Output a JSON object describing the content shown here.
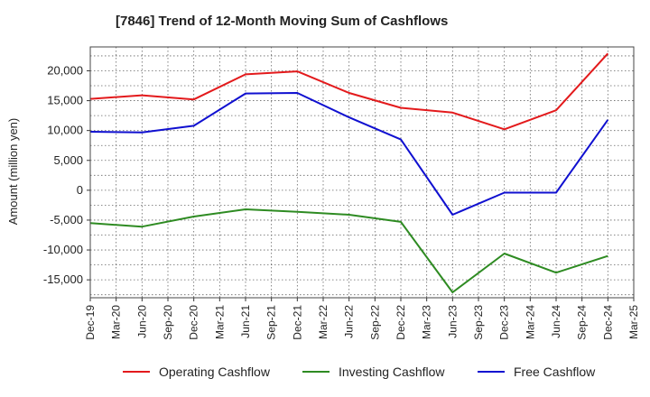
{
  "chart_data": {
    "type": "line",
    "title": "[7846]  Trend of 12-Month Moving Sum of Cashflows",
    "xlabel": "",
    "ylabel": "Amount (million yen)",
    "ylim": [
      -18000,
      24000
    ],
    "y_ticks": [
      20000,
      15000,
      10000,
      5000,
      0,
      -5000,
      -10000,
      -15000
    ],
    "y_tick_labels": [
      "20,000",
      "15,000",
      "10,000",
      "5,000",
      "0",
      "-5,000",
      "-10,000",
      "-15,000"
    ],
    "categories": [
      "Dec-19",
      "Mar-20",
      "Jun-20",
      "Sep-20",
      "Dec-20",
      "Mar-21",
      "Jun-21",
      "Sep-21",
      "Dec-21",
      "Mar-22",
      "Jun-22",
      "Sep-22",
      "Dec-22",
      "Mar-23",
      "Jun-23",
      "Sep-23",
      "Dec-23",
      "Mar-24",
      "Jun-24",
      "Sep-24",
      "Dec-24",
      "Mar-25"
    ],
    "grid": true,
    "legend_position": "bottom",
    "series": [
      {
        "name": "Operating Cashflow",
        "color": "#e31a1c",
        "values": [
          15300,
          null,
          15900,
          null,
          15200,
          null,
          19400,
          null,
          19900,
          null,
          16300,
          null,
          13800,
          null,
          13000,
          null,
          10200,
          null,
          13400,
          null,
          22900,
          null
        ]
      },
      {
        "name": "Investing Cashflow",
        "color": "#2e8b22",
        "values": [
          -5500,
          null,
          -6100,
          null,
          -4400,
          null,
          -3200,
          null,
          -3600,
          null,
          -4100,
          null,
          -5300,
          null,
          -17100,
          null,
          -10600,
          null,
          -13800,
          null,
          -11000,
          null
        ]
      },
      {
        "name": "Free Cashflow",
        "color": "#1010d0",
        "values": [
          9800,
          null,
          9700,
          null,
          10800,
          null,
          16200,
          null,
          16300,
          null,
          12200,
          null,
          8500,
          null,
          -4100,
          null,
          -400,
          null,
          -400,
          null,
          11800,
          null
        ]
      }
    ]
  }
}
